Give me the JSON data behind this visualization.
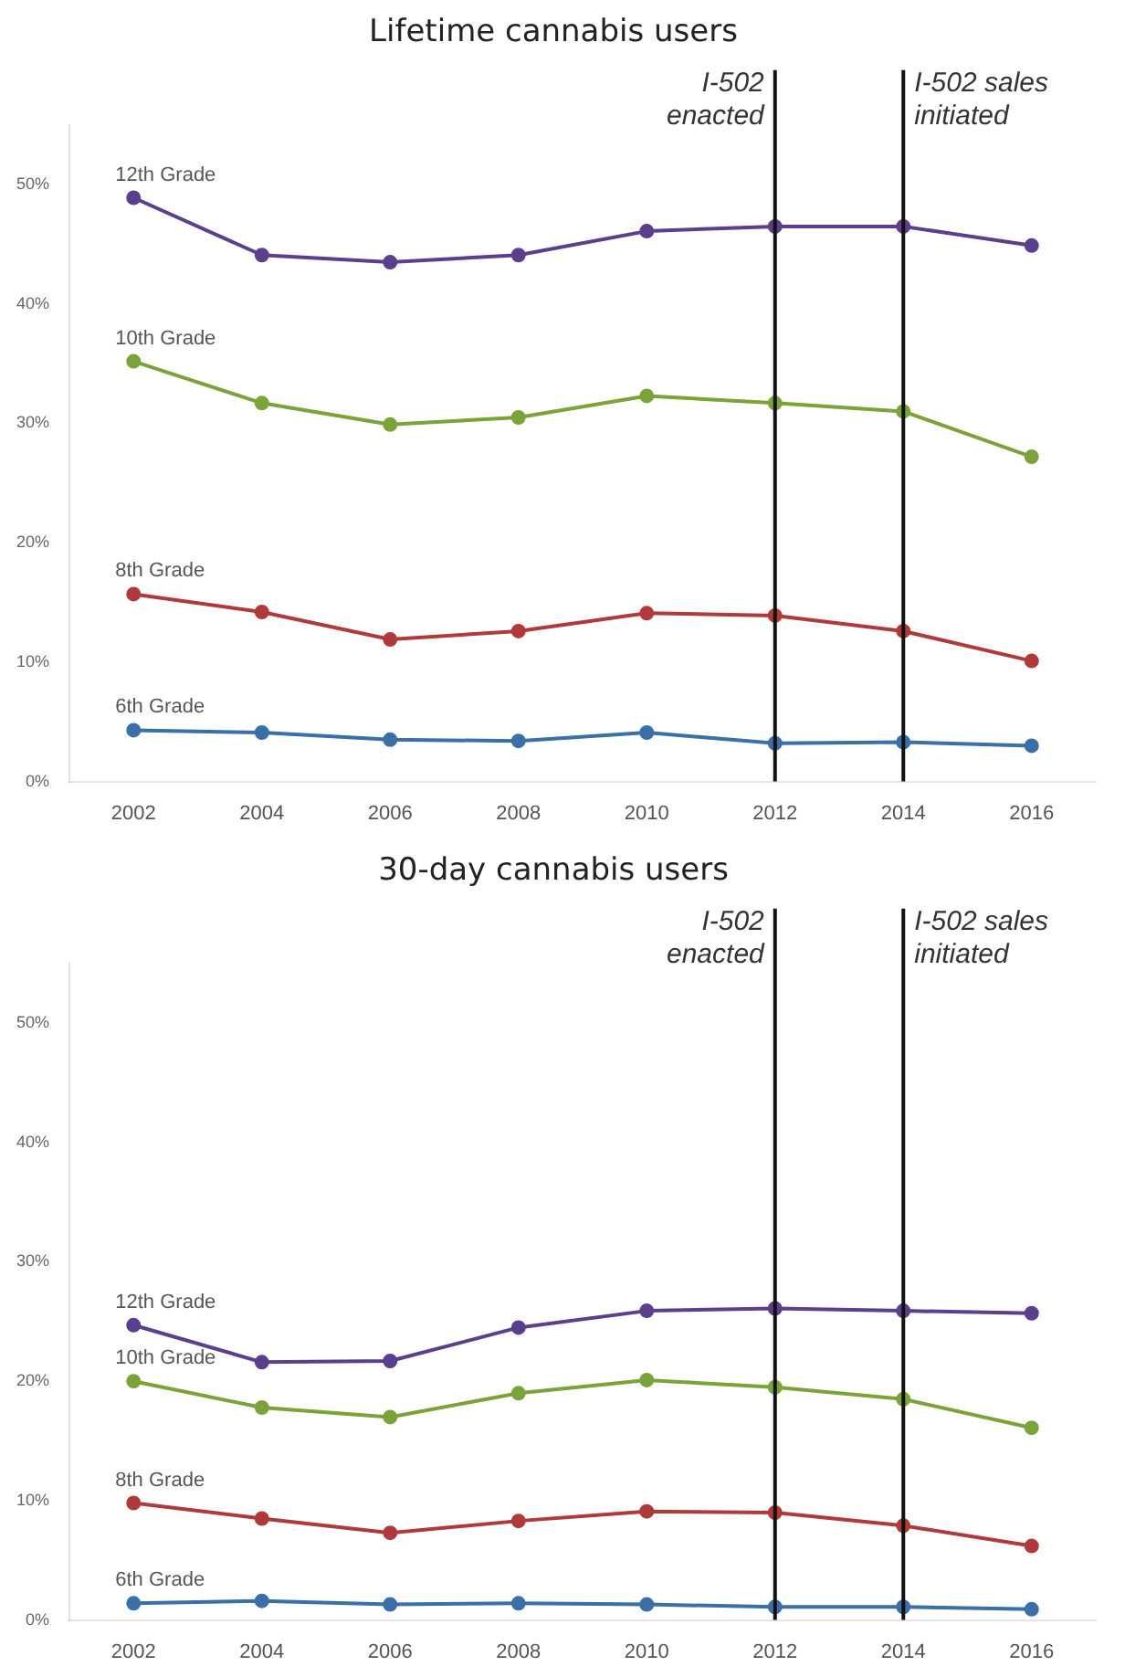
{
  "chart_data": [
    {
      "type": "line",
      "title": "Lifetime cannabis users",
      "categories": [
        "2002",
        "2004",
        "2006",
        "2008",
        "2010",
        "2012",
        "2014",
        "2016"
      ],
      "series": [
        {
          "name": "12th Grade",
          "color": "#5b3f8c",
          "values": [
            48.9,
            44.1,
            43.5,
            44.1,
            46.1,
            46.5,
            46.5,
            44.9
          ]
        },
        {
          "name": "10th Grade",
          "color": "#7aa33a",
          "values": [
            35.2,
            31.7,
            29.9,
            30.5,
            32.3,
            31.7,
            31.0,
            27.2
          ]
        },
        {
          "name": "8th Grade",
          "color": "#b03a3a",
          "values": [
            15.7,
            14.2,
            11.9,
            12.6,
            14.1,
            13.9,
            12.6,
            10.1
          ]
        },
        {
          "name": "6th Grade",
          "color": "#3a6fa8",
          "values": [
            4.3,
            4.1,
            3.5,
            3.4,
            4.1,
            3.2,
            3.3,
            3.0
          ]
        }
      ],
      "ylim": [
        0,
        55
      ],
      "yticks": [
        {
          "value": 0,
          "label": "0%"
        },
        {
          "value": 10,
          "label": "10%"
        },
        {
          "value": 20,
          "label": "20%"
        },
        {
          "value": 30,
          "label": "30%"
        },
        {
          "value": 40,
          "label": "40%"
        },
        {
          "value": 50,
          "label": "50%"
        }
      ],
      "ref_lines": [
        {
          "axis": "x",
          "value": "2012",
          "label": "I-502\nenacted",
          "color": "#111111"
        },
        {
          "axis": "x",
          "value": "2014",
          "label": "I-502 sales\ninitiated",
          "color": "#111111"
        }
      ],
      "grid": false,
      "legend": false,
      "marker": "circle",
      "line_style": "solid"
    },
    {
      "type": "line",
      "title": "30-day cannabis users",
      "categories": [
        "2002",
        "2004",
        "2006",
        "2008",
        "2010",
        "2012",
        "2014",
        "2016"
      ],
      "series": [
        {
          "name": "12th Grade",
          "color": "#5b3f8c",
          "values": [
            24.7,
            21.6,
            21.7,
            24.5,
            25.9,
            26.1,
            25.9,
            25.7
          ]
        },
        {
          "name": "10th Grade",
          "color": "#7aa33a",
          "values": [
            20.0,
            17.8,
            17.0,
            19.0,
            20.1,
            19.5,
            18.5,
            16.1
          ]
        },
        {
          "name": "8th Grade",
          "color": "#b03a3a",
          "values": [
            9.8,
            8.5,
            7.3,
            8.3,
            9.1,
            9.0,
            7.9,
            6.2
          ]
        },
        {
          "name": "6th Grade",
          "color": "#3a6fa8",
          "values": [
            1.4,
            1.6,
            1.3,
            1.4,
            1.3,
            1.1,
            1.1,
            0.9
          ]
        }
      ],
      "ylim": [
        0,
        55
      ],
      "yticks": [
        {
          "value": 0,
          "label": "0%"
        },
        {
          "value": 10,
          "label": "10%"
        },
        {
          "value": 20,
          "label": "20%"
        },
        {
          "value": 30,
          "label": "30%"
        },
        {
          "value": 40,
          "label": "40%"
        },
        {
          "value": 50,
          "label": "50%"
        }
      ],
      "ref_lines": [
        {
          "axis": "x",
          "value": "2012",
          "label": "I-502\nenacted",
          "color": "#111111"
        },
        {
          "axis": "x",
          "value": "2014",
          "label": "I-502 sales\ninitiated",
          "color": "#111111"
        }
      ],
      "grid": false,
      "legend": false,
      "marker": "circle",
      "line_style": "solid"
    }
  ]
}
